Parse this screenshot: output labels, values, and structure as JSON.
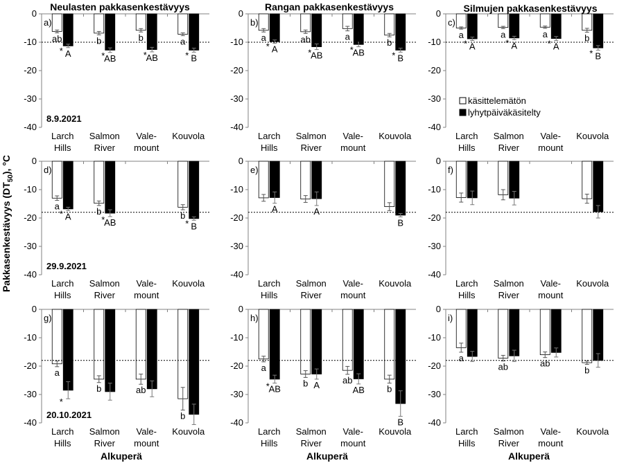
{
  "figure": {
    "ylabel": "Pakkasenkestävyys (DT",
    "ylabel_sub": "50",
    "ylabel_suffix": "), °C",
    "column_titles": [
      "Neulasten pakkasenkestävyys",
      "Rangan pakkasenkestävyys",
      "Silmujen pakkasenkestävyys"
    ],
    "xlabel": "Alkuperä",
    "dates": [
      "8.9.2021",
      "29.9.2021",
      "20.10.2021"
    ],
    "legend": {
      "untreated": "käsittelemätön",
      "treated": "lyhytpäiväkäsitelty"
    },
    "colors": {
      "untreated": "#ffffff",
      "treated": "#000000",
      "axis": "#808080",
      "reference": "#000000"
    }
  },
  "chart_data": [
    {
      "type": "bar",
      "panel": "a)",
      "row": 0,
      "col": 0,
      "categories": [
        [
          "Larch",
          "Hills"
        ],
        [
          "Salmon",
          "River"
        ],
        [
          "Vale-",
          "mount"
        ],
        [
          "Kouvola"
        ]
      ],
      "ylim": [
        -40,
        0
      ],
      "yticks": [
        0,
        -10,
        -20,
        -30,
        -40
      ],
      "reference_line": -10,
      "series": [
        {
          "name": "käsittelemätön",
          "values": [
            -6.2,
            -6.8,
            -5.8,
            -7.2
          ],
          "errors": [
            0.5,
            0.6,
            0.6,
            0.5
          ],
          "labels": [
            "ab",
            "b",
            "b",
            "a"
          ]
        },
        {
          "name": "lyhytpäiväkäsitelty",
          "values": [
            -11.3,
            -12.8,
            -12.6,
            -12.8
          ],
          "errors": [
            0.6,
            0.8,
            0.8,
            0.7
          ],
          "labels": [
            "A",
            "AB",
            "AB",
            "B"
          ],
          "stars": [
            true,
            true,
            true,
            true
          ]
        }
      ]
    },
    {
      "type": "bar",
      "panel": "b)",
      "row": 0,
      "col": 1,
      "categories": [
        [
          "Larch",
          "Hills"
        ],
        [
          "Salmon",
          "River"
        ],
        [
          "Vale-",
          "mount"
        ],
        [
          "Kouvola"
        ]
      ],
      "ylim": [
        -40,
        0
      ],
      "yticks": [
        0,
        -10,
        -20,
        -30,
        -40
      ],
      "reference_line": -10,
      "series": [
        {
          "name": "käsittelemätön",
          "values": [
            -5.8,
            -6.3,
            -5.2,
            -7.5
          ],
          "errors": [
            0.6,
            0.6,
            0.8,
            0.6
          ],
          "labels": [
            "a",
            "ab",
            "a",
            "b"
          ]
        },
        {
          "name": "lyhytpäiväkäsitelty",
          "values": [
            -9.8,
            -11.6,
            -10.8,
            -12.8
          ],
          "errors": [
            0.6,
            1.0,
            0.8,
            0.7
          ],
          "labels": [
            "A",
            "AB",
            "AB",
            "B"
          ],
          "stars": [
            true,
            true,
            true,
            true
          ]
        }
      ]
    },
    {
      "type": "bar",
      "panel": "c)",
      "row": 0,
      "col": 2,
      "categories": [
        [
          "Larch",
          "Hills"
        ],
        [
          "Salmon",
          "River"
        ],
        [
          "Vale-",
          "mount"
        ],
        [
          "Kouvola"
        ]
      ],
      "ylim": [
        -40,
        0
      ],
      "yticks": [
        0,
        -10,
        -20,
        -30,
        -40
      ],
      "reference_line": -10,
      "series": [
        {
          "name": "käsittelemätön",
          "values": [
            -5.0,
            -4.8,
            -4.7,
            -5.8
          ],
          "errors": [
            0.4,
            0.4,
            0.4,
            0.7
          ],
          "labels": [
            "a",
            "a",
            "a",
            "b"
          ]
        },
        {
          "name": "lyhytpäiväkäsitelty",
          "values": [
            -8.8,
            -8.5,
            -8.7,
            -12.0
          ],
          "errors": [
            0.6,
            0.6,
            0.7,
            0.8
          ],
          "labels": [
            "A",
            "A",
            "A",
            "B"
          ],
          "stars": [
            true,
            true,
            true,
            true
          ]
        }
      ]
    },
    {
      "type": "bar",
      "panel": "d)",
      "row": 1,
      "col": 0,
      "categories": [
        [
          "Larch",
          "Hills"
        ],
        [
          "Salmon",
          "River"
        ],
        [
          "Vale-",
          "mount"
        ],
        [
          "Kouvola"
        ]
      ],
      "ylim": [
        -40,
        0
      ],
      "yticks": [
        0,
        -10,
        -20,
        -30,
        -40
      ],
      "reference_line": -18,
      "series": [
        {
          "name": "käsittelemätön",
          "values": [
            -13.0,
            -14.8,
            null,
            -16.2
          ],
          "errors": [
            0.8,
            0.8,
            null,
            0.9
          ],
          "labels": [
            "a",
            "b",
            "",
            "b"
          ]
        },
        {
          "name": "lyhytpäiväkäsitelty",
          "values": [
            -16.8,
            -18.3,
            null,
            -20.2
          ],
          "errors": [
            0.6,
            1.2,
            null,
            0.6
          ],
          "labels": [
            "A",
            "AB",
            "",
            "B"
          ],
          "stars": [
            true,
            true,
            false,
            true
          ]
        }
      ]
    },
    {
      "type": "bar",
      "panel": "e)",
      "row": 1,
      "col": 1,
      "categories": [
        [
          "Larch",
          "Hills"
        ],
        [
          "Salmon",
          "River"
        ],
        [
          "Vale-",
          "mount"
        ],
        [
          "Kouvola"
        ]
      ],
      "ylim": [
        -40,
        0
      ],
      "yticks": [
        0,
        -10,
        -20,
        -30,
        -40
      ],
      "reference_line": -18,
      "series": [
        {
          "name": "käsittelemätön",
          "values": [
            -12.9,
            -13.3,
            null,
            -16.0
          ],
          "errors": [
            1.2,
            1.2,
            null,
            1.4
          ],
          "labels": [
            "",
            "",
            "",
            ""
          ]
        },
        {
          "name": "lyhytpäiväkäsitelty",
          "values": [
            -12.8,
            -13.2,
            null,
            -19.0
          ],
          "errors": [
            2.0,
            2.4,
            null,
            0.6
          ],
          "labels": [
            "A",
            "A",
            "",
            "B"
          ],
          "stars": [
            false,
            false,
            false,
            false
          ]
        }
      ]
    },
    {
      "type": "bar",
      "panel": "f)",
      "row": 1,
      "col": 2,
      "categories": [
        [
          "Larch",
          "Hills"
        ],
        [
          "Salmon",
          "River"
        ],
        [
          "Vale-",
          "mount"
        ],
        [
          "Kouvola"
        ]
      ],
      "ylim": [
        -40,
        0
      ],
      "yticks": [
        0,
        -10,
        -20,
        -30,
        -40
      ],
      "reference_line": -18,
      "series": [
        {
          "name": "käsittelemätön",
          "values": [
            -12.8,
            -11.8,
            null,
            -13.2
          ],
          "errors": [
            1.6,
            1.8,
            null,
            1.6
          ],
          "labels": [
            "",
            "",
            "",
            ""
          ]
        },
        {
          "name": "lyhytpäiväkäsitelty",
          "values": [
            -12.9,
            -13.0,
            null,
            -17.8
          ],
          "errors": [
            2.4,
            2.4,
            null,
            2.2
          ],
          "labels": [
            "",
            "",
            "",
            ""
          ],
          "stars": [
            false,
            false,
            false,
            false
          ]
        }
      ]
    },
    {
      "type": "bar",
      "panel": "g)",
      "row": 2,
      "col": 0,
      "categories": [
        [
          "Larch",
          "Hills"
        ],
        [
          "Salmon",
          "River"
        ],
        [
          "Vale-",
          "mount"
        ],
        [
          "Kouvola"
        ]
      ],
      "ylim": [
        -40,
        0
      ],
      "yticks": [
        0,
        -10,
        -20,
        -30,
        -40
      ],
      "reference_line": -18,
      "series": [
        {
          "name": "käsittelemätön",
          "values": [
            -19.2,
            -24.6,
            -24.6,
            -31.5
          ],
          "errors": [
            1.0,
            1.2,
            1.8,
            4.0
          ],
          "labels": [
            "a",
            "b",
            "ab",
            "b"
          ]
        },
        {
          "name": "lyhytpäiväkäsitelty",
          "values": [
            -28.5,
            -29.0,
            -28.0,
            -37.0
          ],
          "errors": [
            3.0,
            3.0,
            2.8,
            3.6
          ],
          "labels": [
            "",
            "",
            "",
            ""
          ],
          "stars": [
            true,
            false,
            false,
            false
          ]
        }
      ]
    },
    {
      "type": "bar",
      "panel": "h)",
      "row": 2,
      "col": 1,
      "categories": [
        [
          "Larch",
          "Hills"
        ],
        [
          "Salmon",
          "River"
        ],
        [
          "Vale-",
          "mount"
        ],
        [
          "Kouvola"
        ]
      ],
      "ylim": [
        -40,
        0
      ],
      "yticks": [
        0,
        -10,
        -20,
        -30,
        -40
      ],
      "reference_line": -18,
      "series": [
        {
          "name": "käsittelemätön",
          "values": [
            -17.5,
            -22.8,
            -21.5,
            -24.6
          ],
          "errors": [
            1.0,
            1.2,
            1.4,
            1.4
          ],
          "labels": [
            "a",
            "b",
            "ab",
            "b"
          ]
        },
        {
          "name": "lyhytpäiväkäsitelty",
          "values": [
            -24.6,
            -22.8,
            -24.5,
            -33.2
          ],
          "errors": [
            1.4,
            1.8,
            1.8,
            4.5
          ],
          "labels": [
            "AB",
            "A",
            "AB",
            "B"
          ],
          "stars": [
            true,
            false,
            false,
            false
          ]
        }
      ]
    },
    {
      "type": "bar",
      "panel": "i)",
      "row": 2,
      "col": 2,
      "categories": [
        [
          "Larch",
          "Hills"
        ],
        [
          "Salmon",
          "River"
        ],
        [
          "Vale-",
          "mount"
        ],
        [
          "Kouvola"
        ]
      ],
      "ylim": [
        -40,
        0
      ],
      "yticks": [
        0,
        -10,
        -20,
        -30,
        -40
      ],
      "reference_line": -18,
      "series": [
        {
          "name": "käsittelemätön",
          "values": [
            -13.5,
            -17.2,
            -16.0,
            -18.8
          ],
          "errors": [
            1.6,
            1.0,
            1.0,
            0.6
          ],
          "labels": [
            "a",
            "ab",
            "ab",
            "b"
          ]
        },
        {
          "name": "lyhytpäiväkäsitelty",
          "values": [
            -16.6,
            -16.4,
            -15.2,
            -18.0
          ],
          "errors": [
            1.8,
            2.0,
            1.6,
            2.4
          ],
          "labels": [
            "",
            "",
            "",
            ""
          ],
          "stars": [
            false,
            false,
            false,
            false
          ]
        }
      ]
    }
  ]
}
